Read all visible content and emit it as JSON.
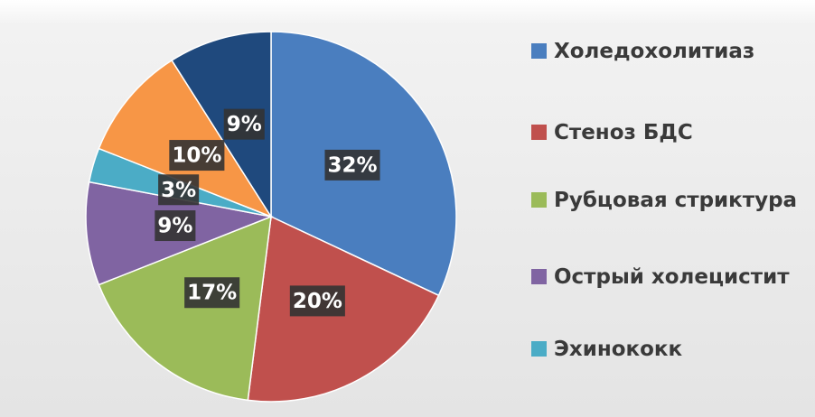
{
  "chart_data": {
    "type": "pie",
    "categories": [
      "Холедохолитиаз",
      "Стеноз БДС",
      "Рубцовая стриктура",
      "Острый холецистит",
      "Эхинококк",
      null,
      null
    ],
    "values": [
      32,
      20,
      17,
      9,
      3,
      10,
      9
    ],
    "value_labels": [
      "32%",
      "20%",
      "17%",
      "9%",
      "3%",
      "10%",
      "9%"
    ],
    "colors": [
      "#4a7ebf",
      "#c0504d",
      "#9bbb59",
      "#8064a2",
      "#4bacc6",
      "#f79646",
      "#1f497d"
    ]
  }
}
